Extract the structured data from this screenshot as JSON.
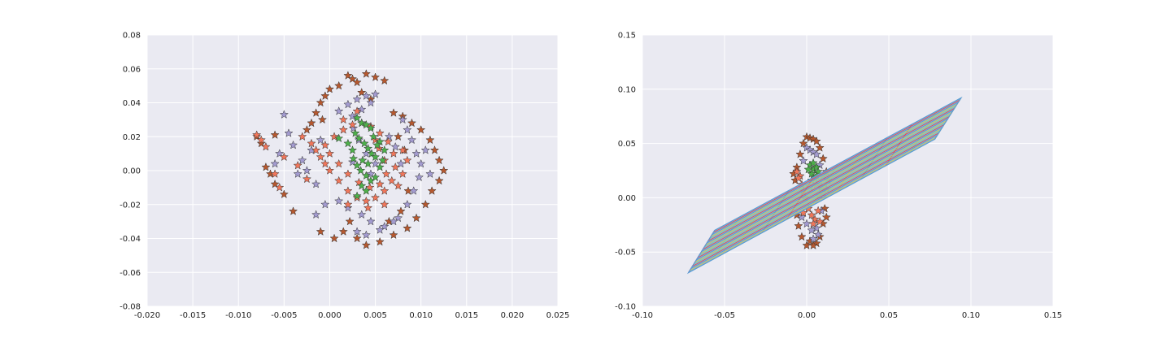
{
  "colors": {
    "axes_bg": "#eaeaf2",
    "grid": "#ffffff",
    "green": "#4daf4a",
    "salmon": "#f0765a",
    "purple": "#a39bd0",
    "brown": "#b5582f",
    "marker_edge": "#333333",
    "plane_edges": [
      "#e05060",
      "#7ec8b0",
      "#d0c060",
      "#5b9bd5"
    ],
    "plane_fill": "#7eb6d8"
  },
  "chart_data": [
    {
      "type": "scatter",
      "title": "",
      "xlabel": "",
      "ylabel": "",
      "xlim": [
        -0.02,
        0.025
      ],
      "ylim": [
        -0.08,
        0.08
      ],
      "xticks": [
        "-0.020",
        "-0.015",
        "-0.010",
        "-0.005",
        "0.000",
        "0.005",
        "0.010",
        "0.015",
        "0.020",
        "0.025"
      ],
      "yticks": [
        "-0.08",
        "-0.06",
        "-0.04",
        "-0.02",
        "0.00",
        "0.02",
        "0.04",
        "0.06",
        "0.08"
      ],
      "grid": true,
      "marker": "star",
      "series": [
        {
          "color": "green",
          "points": [
            [
              0.003,
              0.031
            ],
            [
              0.0035,
              0.028
            ],
            [
              0.004,
              0.027
            ],
            [
              0.0045,
              0.025
            ],
            [
              0.0028,
              0.022
            ],
            [
              0.0032,
              0.019
            ],
            [
              0.0038,
              0.016
            ],
            [
              0.0042,
              0.013
            ],
            [
              0.0046,
              0.01
            ],
            [
              0.005,
              0.008
            ],
            [
              0.0036,
              0.006
            ],
            [
              0.003,
              0.003
            ],
            [
              0.0034,
              0.0
            ],
            [
              0.004,
              -0.003
            ],
            [
              0.0045,
              -0.006
            ],
            [
              0.005,
              -0.004
            ],
            [
              0.0055,
              0.002
            ],
            [
              0.0058,
              0.006
            ],
            [
              0.006,
              0.012
            ],
            [
              0.0055,
              0.017
            ],
            [
              0.0048,
              0.02
            ],
            [
              0.002,
              0.016
            ],
            [
              0.001,
              0.019
            ],
            [
              0.0025,
              0.012
            ],
            [
              0.0035,
              -0.009
            ],
            [
              0.004,
              -0.012
            ],
            [
              0.003,
              -0.015
            ],
            [
              0.0042,
              0.004
            ],
            [
              0.0052,
              0.015
            ],
            [
              0.0026,
              0.007
            ]
          ]
        },
        {
          "color": "salmon",
          "points": [
            [
              -0.008,
              0.021
            ],
            [
              -0.0075,
              0.018
            ],
            [
              -0.007,
              0.014
            ],
            [
              -0.003,
              0.02
            ],
            [
              -0.002,
              0.016
            ],
            [
              -0.0015,
              0.012
            ],
            [
              -0.001,
              0.008
            ],
            [
              -0.0005,
              0.004
            ],
            [
              0.0,
              0.0
            ],
            [
              0.001,
              -0.006
            ],
            [
              0.002,
              -0.012
            ],
            [
              0.003,
              -0.016
            ],
            [
              0.004,
              -0.018
            ],
            [
              0.005,
              -0.016
            ],
            [
              0.006,
              -0.012
            ],
            [
              0.0068,
              -0.006
            ],
            [
              0.0072,
              0.002
            ],
            [
              0.007,
              0.01
            ],
            [
              0.0064,
              0.017
            ],
            [
              0.0055,
              0.022
            ],
            [
              0.0045,
              0.026
            ],
            [
              0.0035,
              0.028
            ],
            [
              0.0025,
              0.027
            ],
            [
              0.0015,
              0.024
            ],
            [
              0.0005,
              0.02
            ],
            [
              -0.0005,
              0.015
            ],
            [
              0.0,
              0.01
            ],
            [
              0.001,
              0.004
            ],
            [
              0.002,
              -0.002
            ],
            [
              0.0032,
              -0.007
            ],
            [
              0.0044,
              -0.01
            ],
            [
              0.0055,
              -0.008
            ],
            [
              0.0062,
              -0.002
            ],
            [
              0.006,
              0.006
            ],
            [
              0.0054,
              0.013
            ],
            [
              0.005,
              0.018
            ],
            [
              0.008,
              0.012
            ],
            [
              0.0085,
              0.006
            ],
            [
              0.008,
              -0.002
            ],
            [
              0.0075,
              -0.009
            ],
            [
              -0.005,
              0.008
            ],
            [
              -0.006,
              -0.002
            ],
            [
              -0.0055,
              -0.01
            ],
            [
              0.002,
              -0.02
            ],
            [
              0.0042,
              -0.022
            ],
            [
              0.006,
              -0.02
            ],
            [
              -0.0035,
              0.003
            ],
            [
              -0.0025,
              -0.005
            ],
            [
              0.0015,
              0.03
            ],
            [
              0.003,
              0.035
            ]
          ]
        },
        {
          "color": "purple",
          "points": [
            [
              -0.005,
              0.033
            ],
            [
              -0.0045,
              0.022
            ],
            [
              -0.004,
              0.015
            ],
            [
              -0.0055,
              0.01
            ],
            [
              -0.006,
              0.004
            ],
            [
              -0.003,
              0.006
            ],
            [
              -0.0035,
              -0.002
            ],
            [
              -0.002,
              0.012
            ],
            [
              -0.001,
              0.018
            ],
            [
              0.001,
              0.035
            ],
            [
              0.002,
              0.039
            ],
            [
              0.003,
              0.042
            ],
            [
              0.004,
              0.044
            ],
            [
              0.005,
              0.045
            ],
            [
              0.0045,
              0.04
            ],
            [
              0.0035,
              0.036
            ],
            [
              0.0025,
              0.032
            ],
            [
              0.008,
              0.03
            ],
            [
              0.0085,
              0.024
            ],
            [
              0.009,
              0.018
            ],
            [
              0.0095,
              0.01
            ],
            [
              0.01,
              0.004
            ],
            [
              0.0098,
              -0.004
            ],
            [
              0.0092,
              -0.012
            ],
            [
              0.0085,
              -0.02
            ],
            [
              0.0075,
              -0.028
            ],
            [
              0.006,
              -0.033
            ],
            [
              0.0045,
              -0.03
            ],
            [
              0.0035,
              -0.026
            ],
            [
              0.002,
              -0.022
            ],
            [
              0.001,
              -0.018
            ],
            [
              -0.0005,
              -0.02
            ],
            [
              -0.0015,
              -0.026
            ],
            [
              0.003,
              -0.036
            ],
            [
              0.004,
              -0.038
            ],
            [
              0.0055,
              -0.035
            ],
            [
              0.007,
              -0.03
            ],
            [
              -0.0025,
              0.0
            ],
            [
              -0.0015,
              -0.008
            ],
            [
              0.0025,
              0.005
            ],
            [
              0.0045,
              -0.002
            ],
            [
              0.005,
              0.004
            ],
            [
              0.004,
              0.01
            ],
            [
              0.0032,
              0.018
            ],
            [
              0.0026,
              0.025
            ],
            [
              0.0065,
              0.02
            ],
            [
              0.0072,
              0.014
            ],
            [
              0.0078,
              0.004
            ],
            [
              0.0105,
              0.012
            ],
            [
              0.011,
              -0.002
            ]
          ]
        },
        {
          "color": "brown",
          "points": [
            [
              0.002,
              0.056
            ],
            [
              0.0025,
              0.054
            ],
            [
              0.003,
              0.052
            ],
            [
              0.004,
              0.057
            ],
            [
              0.005,
              0.055
            ],
            [
              0.006,
              0.053
            ],
            [
              0.001,
              0.05
            ],
            [
              0.0,
              0.048
            ],
            [
              -0.0005,
              0.044
            ],
            [
              -0.001,
              0.04
            ],
            [
              -0.0015,
              0.034
            ],
            [
              -0.002,
              0.028
            ],
            [
              -0.0025,
              0.024
            ],
            [
              0.007,
              0.034
            ],
            [
              0.008,
              0.032
            ],
            [
              0.009,
              0.028
            ],
            [
              0.01,
              0.024
            ],
            [
              0.011,
              0.018
            ],
            [
              0.0115,
              0.012
            ],
            [
              0.012,
              0.006
            ],
            [
              0.0125,
              0.0
            ],
            [
              0.012,
              -0.006
            ],
            [
              0.0112,
              -0.012
            ],
            [
              0.0105,
              -0.02
            ],
            [
              0.0095,
              -0.028
            ],
            [
              0.0085,
              -0.034
            ],
            [
              0.007,
              -0.038
            ],
            [
              0.0055,
              -0.042
            ],
            [
              0.004,
              -0.044
            ],
            [
              0.003,
              -0.04
            ],
            [
              0.0015,
              -0.036
            ],
            [
              0.0005,
              -0.04
            ],
            [
              -0.001,
              -0.036
            ],
            [
              -0.004,
              -0.024
            ],
            [
              -0.005,
              -0.014
            ],
            [
              -0.006,
              -0.008
            ],
            [
              -0.0065,
              -0.002
            ],
            [
              -0.007,
              0.002
            ],
            [
              -0.0075,
              0.016
            ],
            [
              -0.008,
              0.02
            ],
            [
              -0.006,
              0.021
            ],
            [
              0.0035,
              0.046
            ],
            [
              0.0045,
              0.042
            ],
            [
              0.0075,
              0.02
            ],
            [
              0.0082,
              0.012
            ],
            [
              0.0086,
              -0.012
            ],
            [
              0.0078,
              -0.024
            ],
            [
              0.0065,
              -0.03
            ],
            [
              0.0022,
              -0.03
            ],
            [
              -0.0008,
              0.03
            ]
          ]
        }
      ]
    },
    {
      "type": "scatter",
      "title": "",
      "xlabel": "",
      "ylabel": "",
      "xlim": [
        -0.1,
        0.15
      ],
      "ylim": [
        -0.1,
        0.15
      ],
      "xticks": [
        "-0.10",
        "-0.05",
        "0.00",
        "0.05",
        "0.10",
        "0.15"
      ],
      "yticks": [
        "-0.10",
        "-0.05",
        "0.00",
        "0.05",
        "0.10",
        "0.15"
      ],
      "grid": true,
      "marker": "star",
      "plane": {
        "corners": [
          [
            -0.072,
            -0.069
          ],
          [
            -0.056,
            -0.03
          ],
          [
            0.094,
            0.092
          ],
          [
            0.078,
            0.054
          ]
        ],
        "grid_lines": 10
      },
      "series": [
        {
          "color": "green",
          "points": [
            [
              0.002,
              0.03
            ],
            [
              0.004,
              0.026
            ],
            [
              0.006,
              0.028
            ],
            [
              0.003,
              0.022
            ],
            [
              0.005,
              0.018
            ],
            [
              0.007,
              0.024
            ],
            [
              0.001,
              0.026
            ],
            [
              0.004,
              0.032
            ],
            [
              0.006,
              0.02
            ],
            [
              0.003,
              0.016
            ]
          ]
        },
        {
          "color": "salmon",
          "points": [
            [
              -0.004,
              0.02
            ],
            [
              -0.003,
              0.012
            ],
            [
              -0.002,
              0.006
            ],
            [
              -0.001,
              0.0
            ],
            [
              0.001,
              -0.01
            ],
            [
              0.003,
              -0.016
            ],
            [
              0.005,
              -0.02
            ],
            [
              0.007,
              -0.012
            ],
            [
              0.008,
              0.002
            ],
            [
              0.006,
              0.012
            ],
            [
              -0.005,
              0.018
            ],
            [
              -0.002,
              -0.014
            ],
            [
              0.004,
              -0.024
            ],
            [
              0.008,
              -0.022
            ],
            [
              0.009,
              0.01
            ],
            [
              -0.006,
              0.024
            ]
          ]
        },
        {
          "color": "purple",
          "points": [
            [
              0.0,
              0.046
            ],
            [
              0.002,
              0.044
            ],
            [
              0.004,
              0.042
            ],
            [
              0.006,
              0.04
            ],
            [
              -0.002,
              0.034
            ],
            [
              0.008,
              0.03
            ],
            [
              0.01,
              0.02
            ],
            [
              0.01,
              0.004
            ],
            [
              0.009,
              -0.012
            ],
            [
              0.006,
              -0.028
            ],
            [
              0.003,
              -0.03
            ],
            [
              0.0,
              -0.024
            ],
            [
              -0.003,
              -0.018
            ],
            [
              0.004,
              -0.038
            ],
            [
              0.007,
              -0.034
            ],
            [
              0.002,
              0.01
            ]
          ]
        },
        {
          "color": "brown",
          "points": [
            [
              0.0,
              0.056
            ],
            [
              0.002,
              0.055
            ],
            [
              0.004,
              0.054
            ],
            [
              0.006,
              0.052
            ],
            [
              -0.002,
              0.05
            ],
            [
              0.008,
              0.046
            ],
            [
              -0.004,
              0.04
            ],
            [
              0.01,
              0.036
            ],
            [
              0.012,
              0.024
            ],
            [
              -0.006,
              0.028
            ],
            [
              -0.007,
              0.016
            ],
            [
              0.012,
              0.008
            ],
            [
              0.011,
              -0.01
            ],
            [
              0.01,
              -0.024
            ],
            [
              -0.006,
              -0.016
            ],
            [
              -0.005,
              -0.026
            ],
            [
              0.008,
              -0.036
            ],
            [
              0.006,
              -0.042
            ],
            [
              0.004,
              -0.044
            ],
            [
              0.002,
              -0.04
            ],
            [
              0.0,
              -0.044
            ],
            [
              -0.003,
              -0.036
            ],
            [
              -0.008,
              0.022
            ],
            [
              0.013,
              0.016
            ],
            [
              0.012,
              -0.018
            ]
          ]
        }
      ]
    }
  ]
}
